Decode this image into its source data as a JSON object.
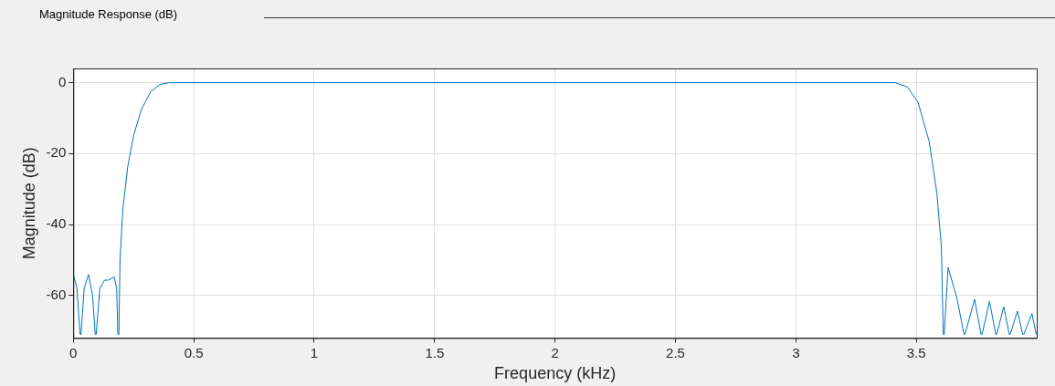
{
  "chart_data": {
    "type": "line",
    "title": "Magnitude Response (dB)",
    "xlabel": "Frequency (kHz)",
    "ylabel": "Magnitude (dB)",
    "xlim": [
      0,
      4
    ],
    "xticks": [
      0,
      0.5,
      1,
      1.5,
      2,
      2.5,
      3,
      3.5
    ],
    "ylim": [
      -72,
      4
    ],
    "yticks": [
      -60,
      -40,
      -20,
      0
    ],
    "grid": true,
    "marker": "none",
    "line_style": "solid",
    "series": [
      {
        "color": "#0072bd",
        "x": [
          0,
          0.015,
          0.028,
          0.032,
          0.045,
          0.063,
          0.08,
          0.091,
          0.095,
          0.11,
          0.13,
          0.145,
          0.17,
          0.18,
          0.185,
          0.189,
          0.194,
          0.206,
          0.226,
          0.251,
          0.283,
          0.322,
          0.36,
          0.399,
          1,
          2,
          3,
          3.412,
          3.463,
          3.508,
          3.553,
          3.585,
          3.604,
          3.612,
          3.616,
          3.632,
          3.668,
          3.698,
          3.702,
          3.742,
          3.769,
          3.773,
          3.804,
          3.83,
          3.834,
          3.863,
          3.886,
          3.89,
          3.92,
          3.942,
          3.946,
          3.98,
          3.998
        ],
        "values": [
          -54,
          -58,
          -71,
          -71,
          -58,
          -54.1,
          -60,
          -71,
          -71,
          -58,
          -55.7,
          -55.7,
          -54.8,
          -58,
          -71,
          -71,
          -49.8,
          -35.4,
          -23.7,
          -14.7,
          -7.5,
          -2.5,
          -0.5,
          0,
          0,
          0,
          0,
          0,
          -1.2,
          -5.7,
          -16.5,
          -30.9,
          -46.2,
          -71,
          -71,
          -52.1,
          -60.6,
          -71,
          -71,
          -61.1,
          -71,
          -71,
          -61.7,
          -71,
          -71,
          -63.2,
          -71,
          -71,
          -64.4,
          -71,
          -71,
          -65.1,
          -71
        ]
      }
    ]
  }
}
